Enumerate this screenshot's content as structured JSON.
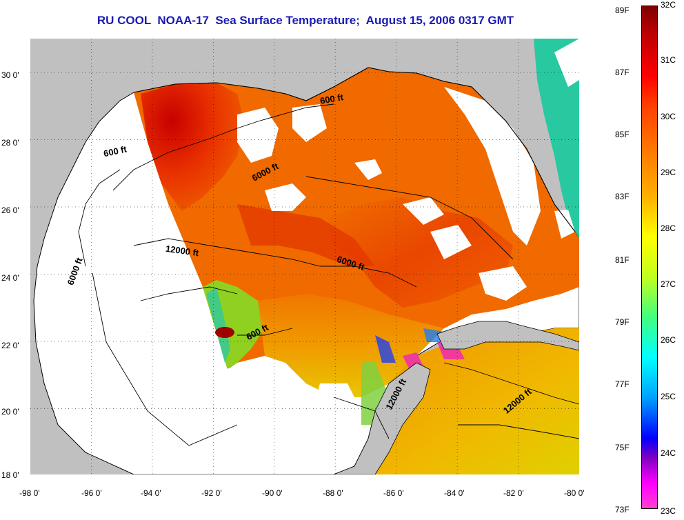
{
  "title": "RU COOL  NOAA-17  Sea Surface Temperature;  August 15, 2006 0317 GMT",
  "map": {
    "lon_range": [
      -98,
      -80
    ],
    "lat_range": [
      18,
      31
    ],
    "lon_ticks": [
      "-98 0'",
      "-96 0'",
      "-94 0'",
      "-92 0'",
      "-90 0'",
      "-88 0'",
      "-86 0'",
      "-84 0'",
      "-82 0'",
      "-80 0'"
    ],
    "lat_ticks": [
      "30 0'",
      "28 0'",
      "26 0'",
      "24 0'",
      "22 0'",
      "20 0'",
      "18 0'"
    ],
    "grid": "dotted",
    "land_color": "#c0c0c0",
    "no_data_color": "#ffffff",
    "contour_labels": [
      "600 ft",
      "600 ft",
      "6000 ft",
      "6000 ft",
      "12000 ft",
      "6000 ft",
      "600 ft",
      "12000 ft",
      "12000 ft"
    ]
  },
  "colorbar": {
    "fahrenheit_labels": [
      "89F",
      "87F",
      "85F",
      "83F",
      "81F",
      "79F",
      "77F",
      "75F",
      "73F"
    ],
    "celsius_labels": [
      "32C",
      "31C",
      "30C",
      "29C",
      "28C",
      "27C",
      "26C",
      "25C",
      "24C",
      "23C"
    ],
    "range_c": [
      23,
      32
    ]
  }
}
